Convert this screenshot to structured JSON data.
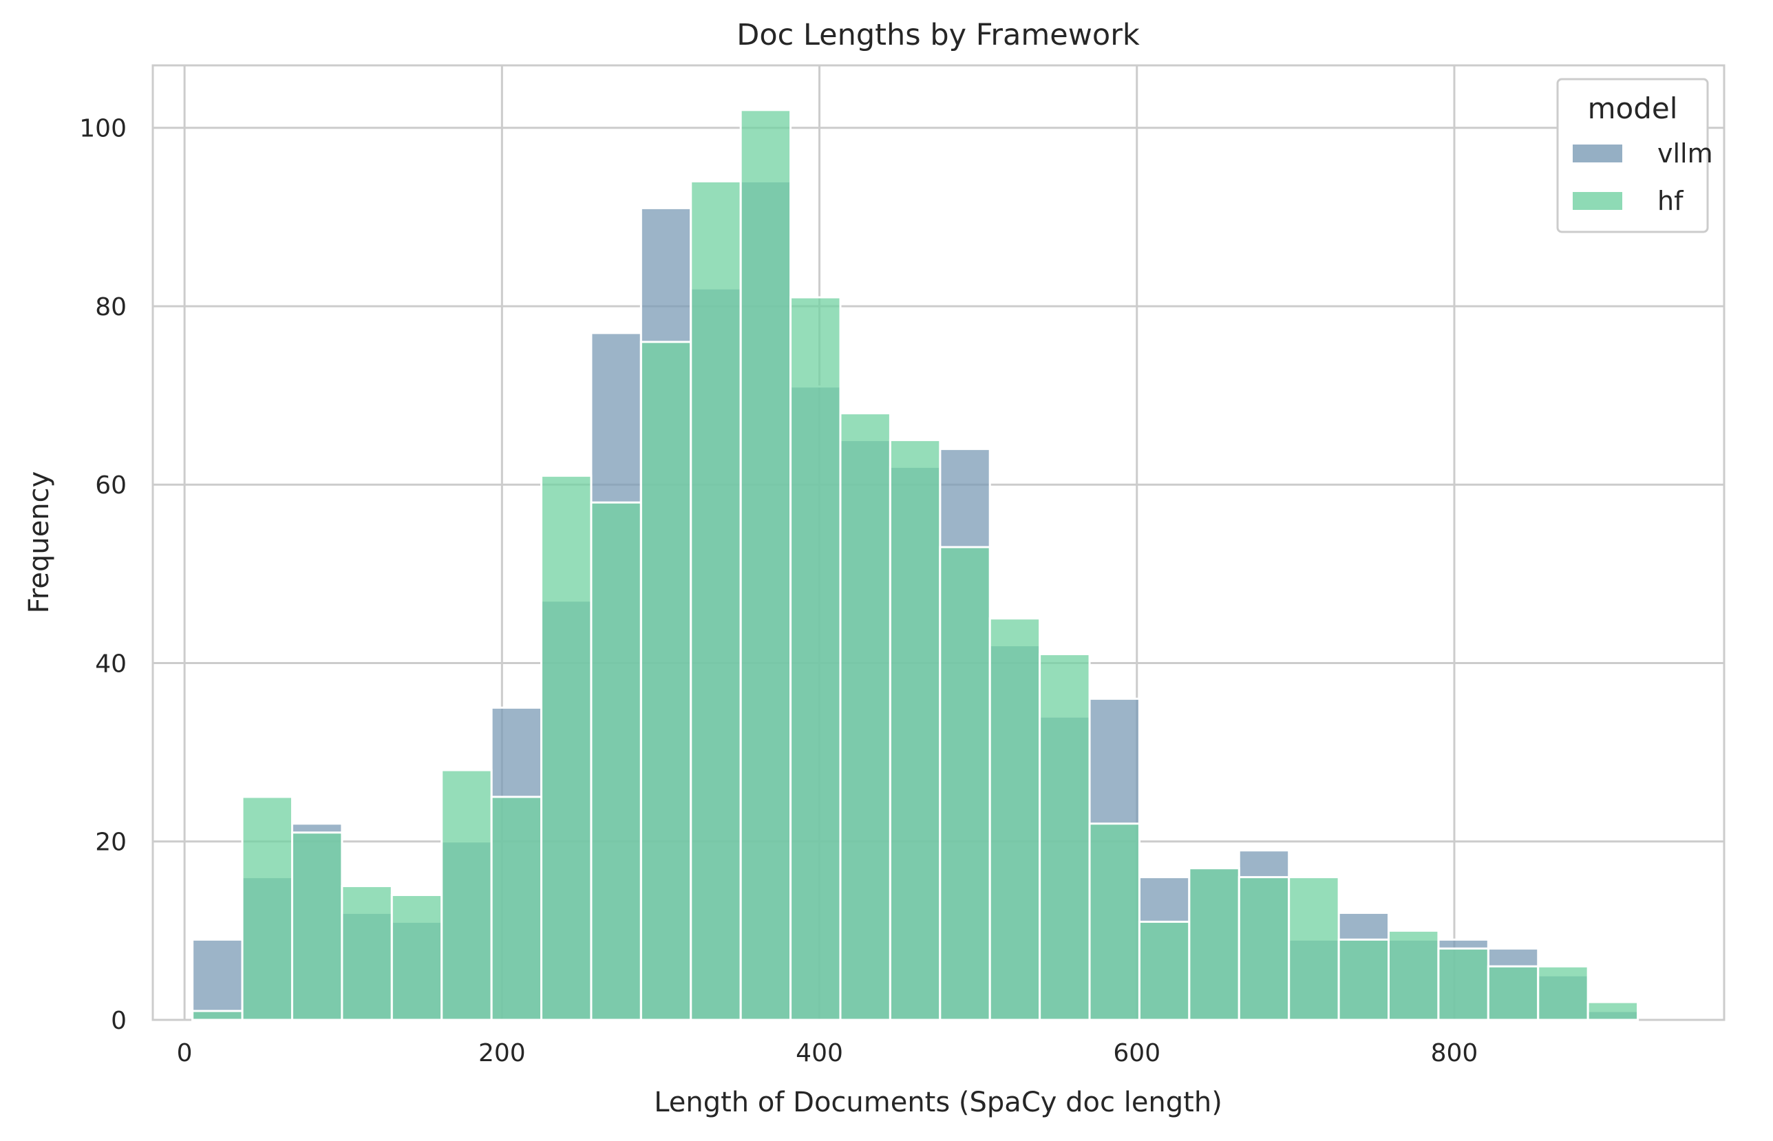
{
  "chart_data": {
    "type": "bar",
    "title": "Doc Lengths by Framework",
    "xlabel": "Length of Documents (SpaCy doc length)",
    "ylabel": "Frequency",
    "xlim": [
      -20,
      970
    ],
    "ylim": [
      0,
      107
    ],
    "xticks": [
      0,
      200,
      400,
      600,
      800
    ],
    "yticks": [
      0,
      20,
      40,
      60,
      80,
      100
    ],
    "grid": true,
    "bin_start": 5,
    "bin_width": 31.4,
    "legend": {
      "title": "model",
      "placement": "top-right"
    },
    "colors": {
      "vllm": "#7b9bb5",
      "hf": "#72d1a2",
      "overlap": "#66a0a2"
    },
    "series": [
      {
        "name": "vllm",
        "values": [
          9,
          16,
          22,
          12,
          11,
          20,
          35,
          47,
          77,
          91,
          82,
          94,
          71,
          65,
          62,
          64,
          42,
          34,
          36,
          16,
          17,
          19,
          9,
          12,
          9,
          9,
          8,
          5,
          1
        ]
      },
      {
        "name": "hf",
        "values": [
          1,
          25,
          21,
          15,
          14,
          28,
          25,
          61,
          58,
          76,
          94,
          102,
          81,
          68,
          65,
          53,
          45,
          41,
          22,
          11,
          17,
          16,
          16,
          9,
          10,
          8,
          6,
          6,
          2
        ]
      }
    ]
  }
}
